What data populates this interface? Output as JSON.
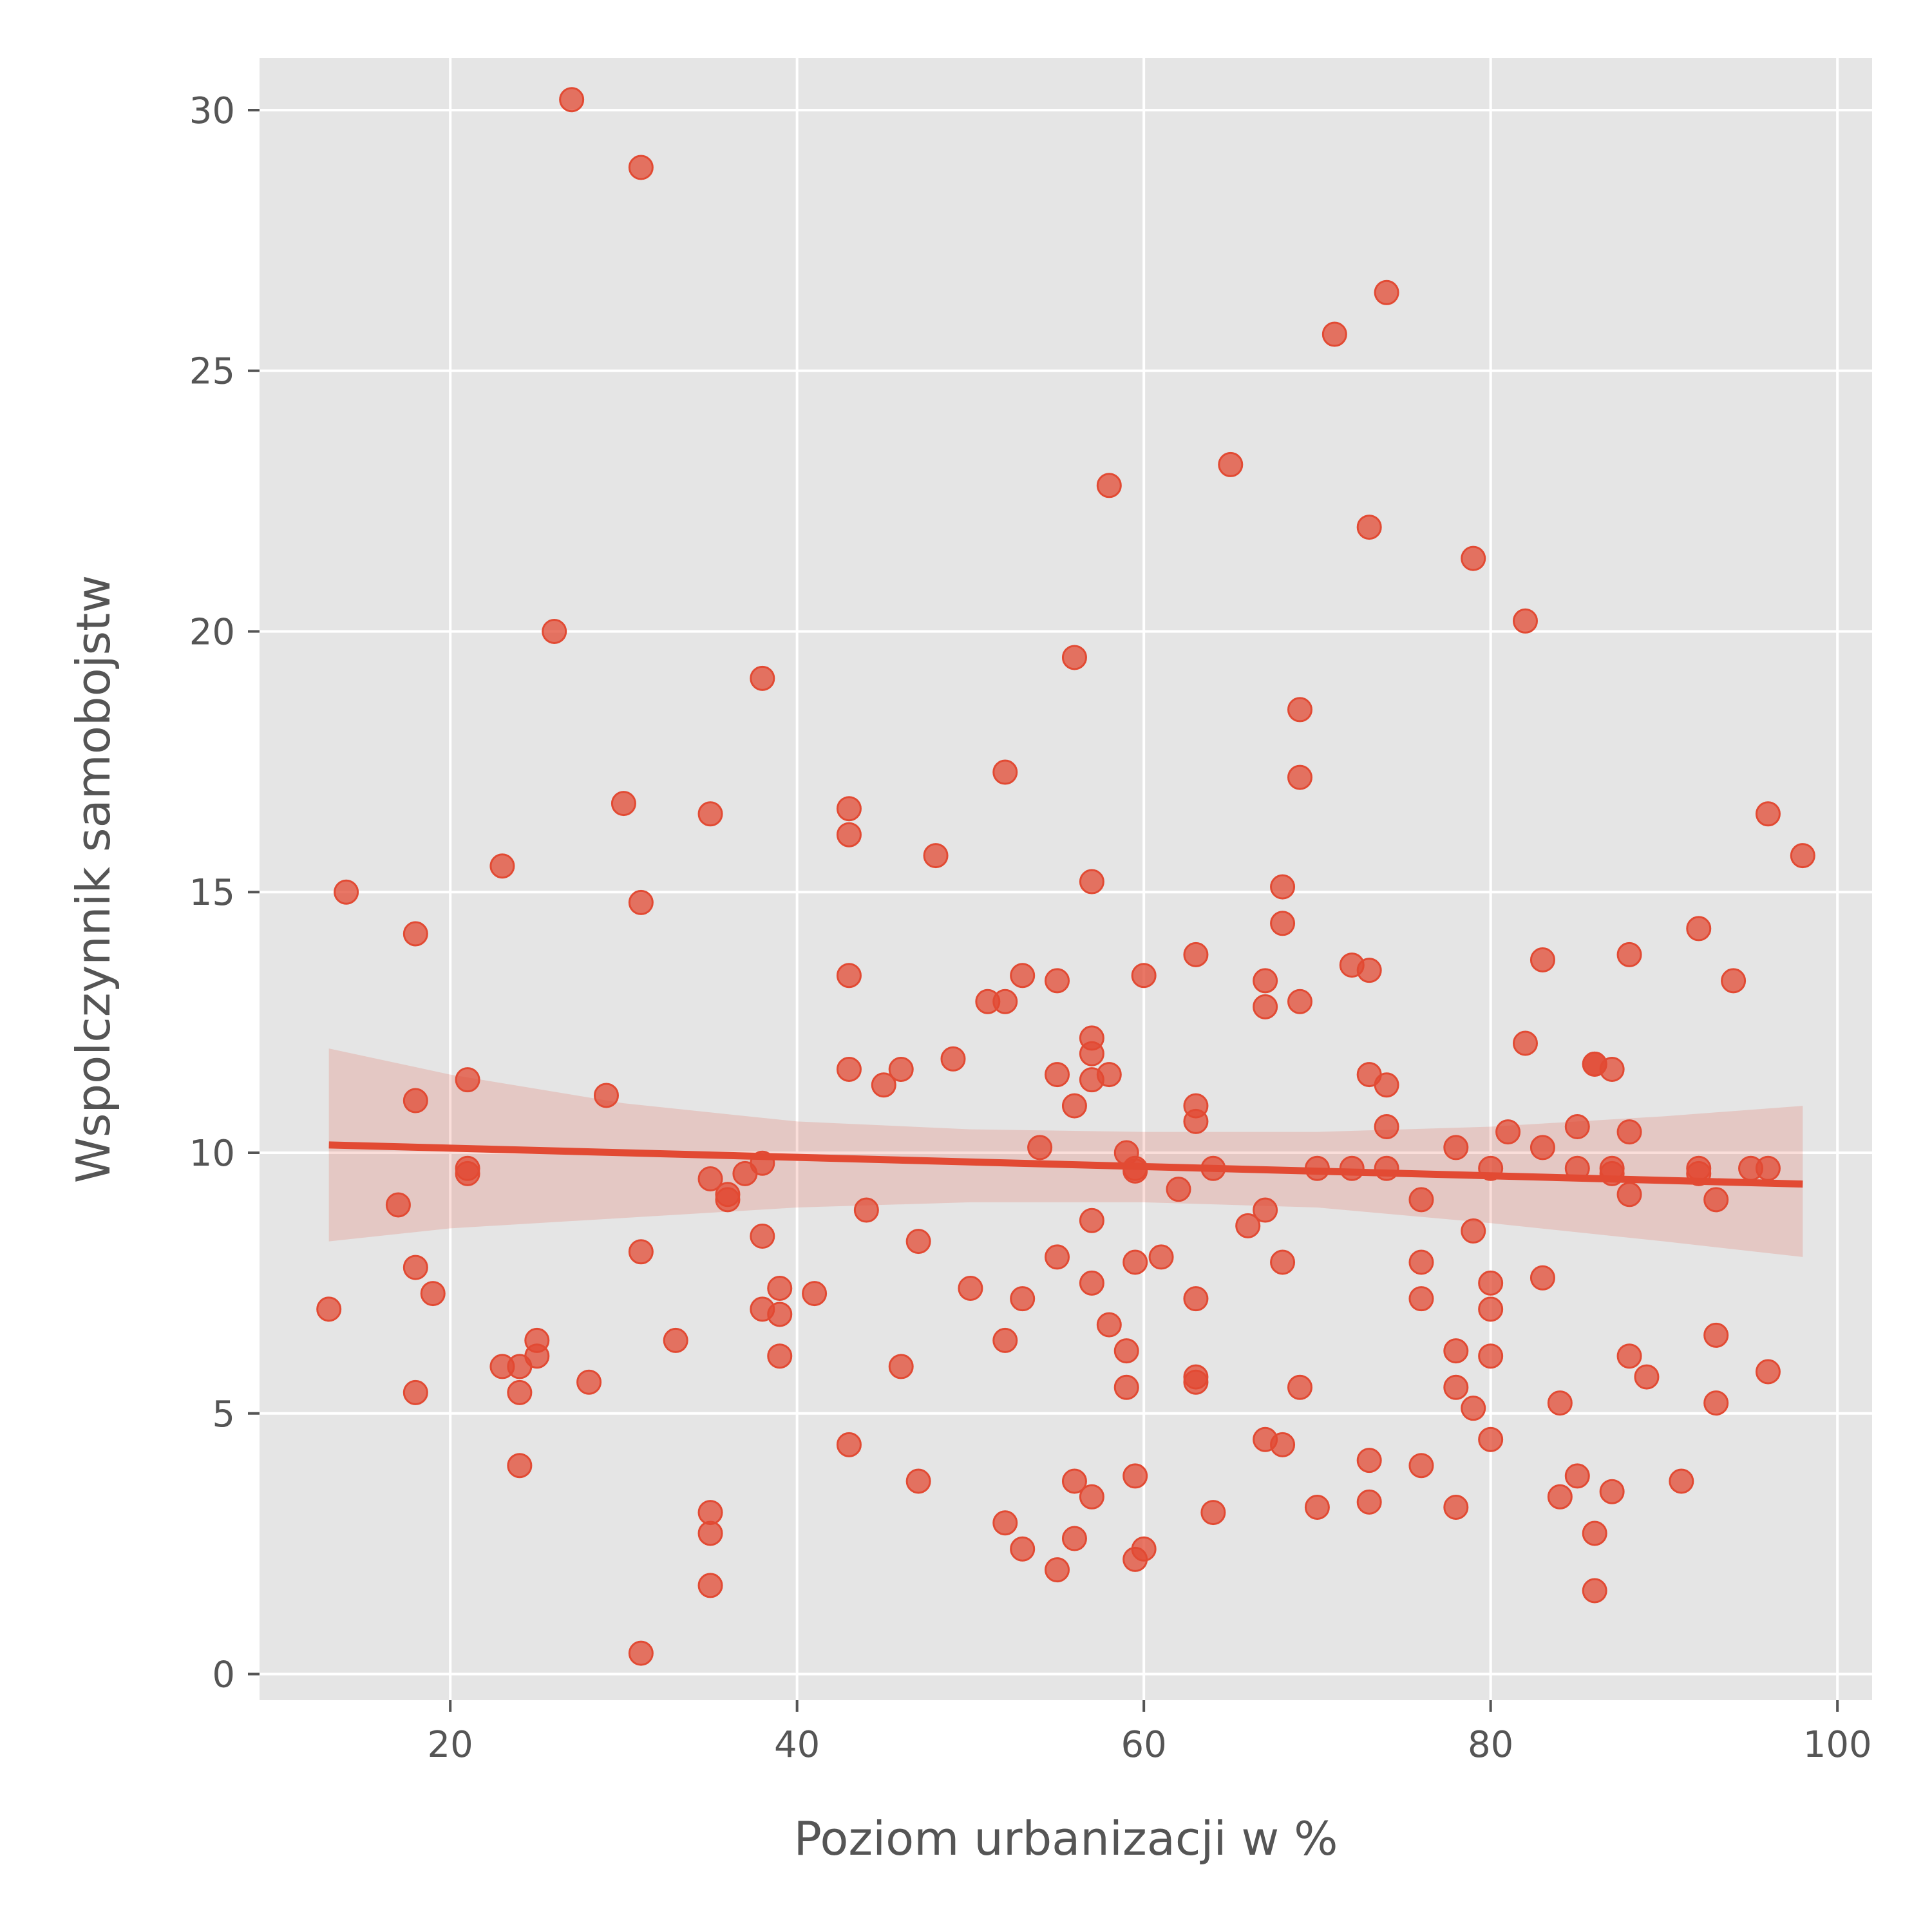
{
  "chart_data": {
    "type": "scatter",
    "title": "",
    "xlabel": "Poziom urbanizacji w %",
    "ylabel": "Wspolczynnik samobojstw",
    "xlim": [
      9,
      102
    ],
    "ylim": [
      -0.5,
      31
    ],
    "xticks": [
      20,
      40,
      60,
      80,
      100
    ],
    "yticks": [
      0,
      5,
      10,
      15,
      20,
      25,
      30
    ],
    "grid": true,
    "legend": "none",
    "colors": {
      "points": "#e24a33",
      "line": "#e24a33",
      "band": "#e24a33",
      "background": "#e5e5e5",
      "grid": "#ffffff",
      "text": "#555555"
    },
    "points": [
      [
        13,
        7.0
      ],
      [
        14,
        15.0
      ],
      [
        17,
        9.0
      ],
      [
        18,
        14.2
      ],
      [
        18,
        11.0
      ],
      [
        18,
        7.8
      ],
      [
        18,
        5.4
      ],
      [
        19,
        7.3
      ],
      [
        21,
        11.4
      ],
      [
        21,
        9.7
      ],
      [
        21,
        9.6
      ],
      [
        23,
        15.5
      ],
      [
        23,
        5.9
      ],
      [
        24,
        5.9
      ],
      [
        24,
        5.4
      ],
      [
        24,
        4.0
      ],
      [
        25,
        6.4
      ],
      [
        25,
        6.1
      ],
      [
        26,
        20.0
      ],
      [
        27,
        30.2
      ],
      [
        28,
        5.6
      ],
      [
        29,
        11.1
      ],
      [
        30,
        16.7
      ],
      [
        31,
        28.9
      ],
      [
        31,
        14.8
      ],
      [
        31,
        8.1
      ],
      [
        31,
        0.4
      ],
      [
        33,
        6.4
      ],
      [
        35,
        16.5
      ],
      [
        35,
        9.5
      ],
      [
        35,
        3.1
      ],
      [
        35,
        2.7
      ],
      [
        35,
        1.7
      ],
      [
        36,
        9.2
      ],
      [
        36,
        9.1
      ],
      [
        37,
        9.6
      ],
      [
        38,
        19.1
      ],
      [
        38,
        9.8
      ],
      [
        38,
        8.4
      ],
      [
        38,
        7.0
      ],
      [
        39,
        7.4
      ],
      [
        39,
        6.9
      ],
      [
        39,
        6.1
      ],
      [
        41,
        7.3
      ],
      [
        43,
        16.6
      ],
      [
        43,
        16.1
      ],
      [
        43,
        13.4
      ],
      [
        43,
        11.6
      ],
      [
        43,
        4.4
      ],
      [
        44,
        8.9
      ],
      [
        45,
        11.3
      ],
      [
        46,
        11.6
      ],
      [
        46,
        5.9
      ],
      [
        47,
        8.3
      ],
      [
        47,
        3.7
      ],
      [
        48,
        15.7
      ],
      [
        49,
        11.8
      ],
      [
        50,
        7.4
      ],
      [
        51,
        12.9
      ],
      [
        52,
        17.3
      ],
      [
        52,
        12.9
      ],
      [
        52,
        6.4
      ],
      [
        52,
        2.9
      ],
      [
        53,
        13.4
      ],
      [
        53,
        7.2
      ],
      [
        53,
        2.4
      ],
      [
        54,
        10.1
      ],
      [
        55,
        13.3
      ],
      [
        55,
        11.5
      ],
      [
        55,
        8.0
      ],
      [
        55,
        2.0
      ],
      [
        56,
        19.5
      ],
      [
        56,
        10.9
      ],
      [
        56,
        3.7
      ],
      [
        56,
        2.6
      ],
      [
        57,
        15.2
      ],
      [
        57,
        12.2
      ],
      [
        57,
        11.9
      ],
      [
        57,
        11.4
      ],
      [
        57,
        8.7
      ],
      [
        57,
        7.5
      ],
      [
        57,
        3.4
      ],
      [
        58,
        22.8
      ],
      [
        58,
        11.5
      ],
      [
        58,
        6.7
      ],
      [
        59,
        10.0
      ],
      [
        59,
        6.2
      ],
      [
        59,
        5.5
      ],
      [
        59.5,
        9.7
      ],
      [
        59.5,
        9.65
      ],
      [
        59.5,
        7.9
      ],
      [
        59.5,
        3.8
      ],
      [
        59.5,
        2.2
      ],
      [
        60,
        13.4
      ],
      [
        60,
        2.4
      ],
      [
        61,
        8.0
      ],
      [
        62,
        9.3
      ],
      [
        63,
        13.8
      ],
      [
        63,
        10.9
      ],
      [
        63,
        10.6
      ],
      [
        63,
        7.2
      ],
      [
        63,
        5.7
      ],
      [
        63,
        5.6
      ],
      [
        64,
        9.7
      ],
      [
        64,
        3.1
      ],
      [
        65,
        23.2
      ],
      [
        66,
        8.6
      ],
      [
        67,
        13.3
      ],
      [
        67,
        12.8
      ],
      [
        67,
        8.9
      ],
      [
        67,
        4.5
      ],
      [
        68,
        15.1
      ],
      [
        68,
        14.4
      ],
      [
        68,
        7.9
      ],
      [
        68,
        4.4
      ],
      [
        69,
        18.5
      ],
      [
        69,
        17.2
      ],
      [
        69,
        12.9
      ],
      [
        69,
        5.5
      ],
      [
        70,
        9.7
      ],
      [
        70,
        3.2
      ],
      [
        71,
        25.7
      ],
      [
        72,
        13.6
      ],
      [
        72,
        9.7
      ],
      [
        73,
        22.0
      ],
      [
        73,
        13.5
      ],
      [
        73,
        11.5
      ],
      [
        73,
        4.1
      ],
      [
        73,
        3.3
      ],
      [
        74,
        26.5
      ],
      [
        74,
        11.3
      ],
      [
        74,
        10.5
      ],
      [
        74,
        9.7
      ],
      [
        76,
        9.1
      ],
      [
        76,
        7.9
      ],
      [
        76,
        7.2
      ],
      [
        76,
        4.0
      ],
      [
        78,
        10.1
      ],
      [
        78,
        6.2
      ],
      [
        78,
        5.5
      ],
      [
        78,
        3.2
      ],
      [
        79,
        21.4
      ],
      [
        79,
        8.5
      ],
      [
        79,
        5.1
      ],
      [
        80,
        9.7
      ],
      [
        80,
        7.5
      ],
      [
        80,
        7.0
      ],
      [
        80,
        6.1
      ],
      [
        80,
        4.5
      ],
      [
        81,
        10.4
      ],
      [
        82,
        20.2
      ],
      [
        82,
        12.1
      ],
      [
        83,
        13.7
      ],
      [
        83,
        10.1
      ],
      [
        83,
        7.6
      ],
      [
        84,
        5.2
      ],
      [
        84,
        3.4
      ],
      [
        85,
        10.5
      ],
      [
        85,
        9.7
      ],
      [
        85,
        3.8
      ],
      [
        86,
        11.7
      ],
      [
        86,
        11.7
      ],
      [
        86,
        2.7
      ],
      [
        86,
        1.6
      ],
      [
        87,
        11.6
      ],
      [
        87,
        9.7
      ],
      [
        87,
        9.6
      ],
      [
        87,
        3.5
      ],
      [
        88,
        13.8
      ],
      [
        88,
        10.4
      ],
      [
        88,
        9.2
      ],
      [
        88,
        6.1
      ],
      [
        89,
        5.7
      ],
      [
        91,
        3.7
      ],
      [
        92,
        14.3
      ],
      [
        92,
        9.7
      ],
      [
        92,
        9.6
      ],
      [
        93,
        9.1
      ],
      [
        93,
        6.5
      ],
      [
        93,
        5.2
      ],
      [
        94,
        13.3
      ],
      [
        95,
        9.7
      ],
      [
        96,
        16.5
      ],
      [
        96,
        9.7
      ],
      [
        96,
        5.8
      ],
      [
        98,
        15.7
      ]
    ],
    "regression": {
      "x": [
        13,
        98
      ],
      "y": [
        10.15,
        9.4
      ]
    },
    "confidence_band": {
      "x": [
        13,
        20,
        30,
        40,
        50,
        60,
        70,
        80,
        90,
        98
      ],
      "upper": [
        12.0,
        11.5,
        10.95,
        10.6,
        10.45,
        10.4,
        10.4,
        10.5,
        10.7,
        10.9
      ],
      "lower": [
        8.3,
        8.55,
        8.75,
        8.95,
        9.05,
        9.05,
        8.95,
        8.65,
        8.3,
        8.0
      ]
    }
  }
}
